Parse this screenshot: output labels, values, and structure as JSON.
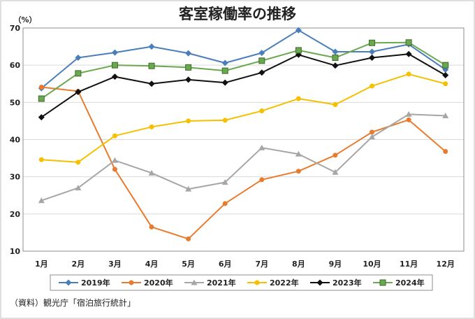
{
  "chart_data": {
    "type": "line",
    "title": "客室稼働率の推移",
    "ylabel": "",
    "unit_label": "（%）",
    "xlabel": "",
    "categories": [
      "1月",
      "2月",
      "3月",
      "4月",
      "5月",
      "6月",
      "7月",
      "8月",
      "9月",
      "10月",
      "11月",
      "12月"
    ],
    "ylim": [
      10,
      70
    ],
    "yticks": [
      10,
      20,
      30,
      40,
      50,
      60,
      70
    ],
    "grid": true,
    "legend_position": "bottom",
    "series": [
      {
        "name": "2019年",
        "color": "#4a7ebb",
        "marker": "diamond",
        "values": [
          53.8,
          62.0,
          63.4,
          65.0,
          63.2,
          60.6,
          63.3,
          69.4,
          63.6,
          63.6,
          65.6,
          58.8
        ]
      },
      {
        "name": "2020年",
        "color": "#e87b2e",
        "marker": "circle",
        "values": [
          54.1,
          53.0,
          32.0,
          16.5,
          13.3,
          22.8,
          29.2,
          31.5,
          35.8,
          42.0,
          45.3,
          36.8
        ]
      },
      {
        "name": "2021年",
        "color": "#a6a6a6",
        "marker": "triangle",
        "values": [
          23.6,
          27.0,
          34.4,
          31.0,
          26.7,
          28.5,
          37.8,
          36.1,
          31.2,
          40.7,
          46.8,
          46.4
        ]
      },
      {
        "name": "2022年",
        "color": "#f5c000",
        "marker": "circle",
        "values": [
          34.6,
          33.9,
          41.0,
          43.4,
          45.0,
          45.2,
          47.7,
          51.0,
          49.4,
          54.4,
          57.6,
          55.0
        ]
      },
      {
        "name": "2023年",
        "color": "#111111",
        "marker": "diamond",
        "values": [
          46.0,
          52.8,
          56.9,
          55.0,
          56.1,
          55.3,
          58.0,
          62.8,
          59.9,
          62.0,
          63.0,
          57.3
        ]
      },
      {
        "name": "2024年",
        "color": "#6aa84f",
        "marker": "square",
        "values": [
          51.0,
          57.8,
          60.0,
          59.8,
          59.4,
          58.5,
          61.2,
          64.0,
          62.0,
          66.0,
          66.1,
          60.0
        ]
      }
    ],
    "source": "（資料）観光庁「宿泊旅行統計」"
  }
}
